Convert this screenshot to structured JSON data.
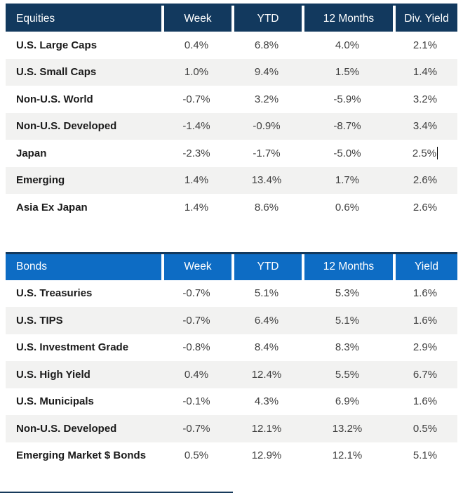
{
  "colors": {
    "equities_header_bg": "#12395E",
    "bonds_header_bg": "#0D6CC4",
    "header_top_border": "#12395E",
    "header_text": "#FFFFFF",
    "row_stripe": "#F2F2F1",
    "row_label_text": "#1A1A1A",
    "row_value_text": "#404040"
  },
  "text_cursor": {
    "visible": true,
    "table": "Equities",
    "row": "Japan",
    "column": "Div. Yield"
  },
  "chart_data": [
    {
      "type": "table",
      "title": "Equities",
      "columns": [
        "Week",
        "YTD",
        "12 Months",
        "Div. Yield"
      ],
      "rows": [
        [
          "U.S. Large Caps",
          "0.4%",
          "6.8%",
          "4.0%",
          "2.1%"
        ],
        [
          "U.S. Small Caps",
          "1.0%",
          "9.4%",
          "1.5%",
          "1.4%"
        ],
        [
          "Non-U.S. World",
          "-0.7%",
          "3.2%",
          "-5.9%",
          "3.2%"
        ],
        [
          "Non-U.S. Developed",
          "-1.4%",
          "-0.9%",
          "-8.7%",
          "3.4%"
        ],
        [
          "Japan",
          "-2.3%",
          "-1.7%",
          "-5.0%",
          "2.5%"
        ],
        [
          "Emerging",
          "1.4%",
          "13.4%",
          "1.7%",
          "2.6%"
        ],
        [
          "Asia Ex Japan",
          "1.4%",
          "8.6%",
          "0.6%",
          "2.6%"
        ]
      ]
    },
    {
      "type": "table",
      "title": "Bonds",
      "columns": [
        "Week",
        "YTD",
        "12 Months",
        "Yield"
      ],
      "rows": [
        [
          "U.S. Treasuries",
          "-0.7%",
          "5.1%",
          "5.3%",
          "1.6%"
        ],
        [
          "U.S. TIPS",
          "-0.7%",
          "6.4%",
          "5.1%",
          "1.6%"
        ],
        [
          "U.S. Investment Grade",
          "-0.8%",
          "8.4%",
          "8.3%",
          "2.9%"
        ],
        [
          "U.S. High Yield",
          "0.4%",
          "12.4%",
          "5.5%",
          "6.7%"
        ],
        [
          "U.S. Municipals",
          "-0.1%",
          "4.3%",
          "6.9%",
          "1.6%"
        ],
        [
          "Non-U.S. Developed",
          "-0.7%",
          "12.1%",
          "13.2%",
          "0.5%"
        ],
        [
          "Emerging Market $ Bonds",
          "0.5%",
          "12.9%",
          "12.1%",
          "5.1%"
        ]
      ]
    }
  ]
}
